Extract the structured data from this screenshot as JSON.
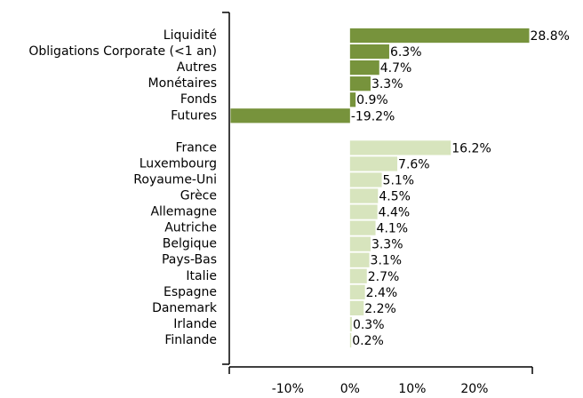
{
  "chart_data": {
    "type": "bar",
    "orientation": "horizontal",
    "categories": [
      "Liquidité",
      "Obligations Corporate (<1 an)",
      "Autres",
      "Monétaires",
      "Fonds",
      "Futures",
      null,
      "France",
      "Luxembourg",
      "Royaume-Uni",
      "Grèce",
      "Allemagne",
      "Autriche",
      "Belgique",
      "Pays-Bas",
      "Italie",
      "Espagne",
      "Danemark",
      "Irlande",
      "Finlande"
    ],
    "series": [
      {
        "color": "#77933c",
        "values": [
          28.8,
          6.3,
          4.7,
          3.3,
          0.9,
          -19.2,
          null,
          null,
          null,
          null,
          null,
          null,
          null,
          null,
          null,
          null,
          null,
          null,
          null,
          null
        ],
        "value_labels": [
          "28.8%",
          "6.3%",
          "4.7%",
          "3.3%",
          "0.9%",
          "-19.2%",
          null,
          null,
          null,
          null,
          null,
          null,
          null,
          null,
          null,
          null,
          null,
          null,
          null,
          null
        ]
      },
      {
        "color": "#d7e4bd",
        "values": [
          null,
          null,
          null,
          null,
          null,
          null,
          null,
          16.2,
          7.6,
          5.1,
          4.5,
          4.4,
          4.1,
          3.3,
          3.1,
          2.7,
          2.4,
          2.2,
          0.3,
          0.2
        ],
        "value_labels": [
          null,
          null,
          null,
          null,
          null,
          null,
          null,
          "16.2%",
          "7.6%",
          "5.1%",
          "4.5%",
          "4.4%",
          "4.1%",
          "3.3%",
          "3.1%",
          "2.7%",
          "2.4%",
          "2.2%",
          "0.3%",
          "0.2%"
        ]
      }
    ],
    "xlim": [
      -19.4,
      29.3
    ],
    "xticks": [
      {
        "value": -10,
        "label": "-10%"
      },
      {
        "value": 0,
        "label": "0%"
      },
      {
        "value": 10,
        "label": "10%"
      },
      {
        "value": 20,
        "label": "20%"
      }
    ]
  }
}
